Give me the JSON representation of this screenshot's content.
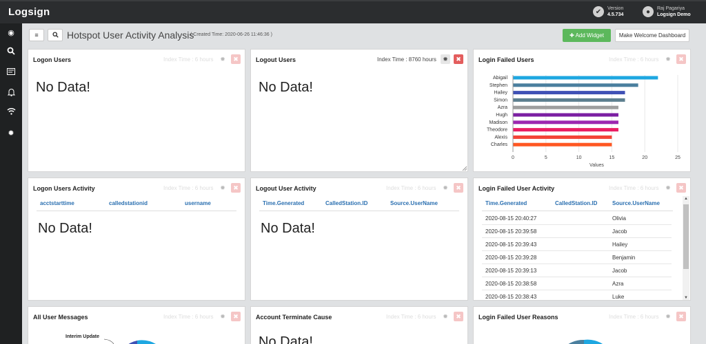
{
  "app": {
    "brand": "Logsign",
    "version_label": "Version",
    "version_value": "4.5.734",
    "user_name": "Raj Pagariya",
    "user_org": "Logsign Demo"
  },
  "sidebar": {
    "icons": [
      "dashboard-icon",
      "search-icon",
      "report-icon",
      "bell-icon",
      "wifi-icon",
      "gear-icon"
    ]
  },
  "header": {
    "title": "Hotspot User Activity Analysis",
    "subtitle": "( Created Time: 2020-06-26 11:46:36 )",
    "add_widget_label": "Add Widget",
    "welcome_label": "Make Welcome Dashboard"
  },
  "common": {
    "index_time": "Index Time : 6 hours",
    "no_data": "No Data!"
  },
  "panels": {
    "logon_users": {
      "title": "Logon Users"
    },
    "logout_users": {
      "title": "Logout Users",
      "index_time": "Index Time : 8760 hours"
    },
    "login_failed_users": {
      "title": "Login Failed Users"
    },
    "logon_users_activity": {
      "title": "Logon Users Activity",
      "columns": [
        "acctstarttime",
        "calledstationid",
        "username"
      ]
    },
    "logout_user_activity": {
      "title": "Logout User Activity",
      "columns": [
        "Time.Generated",
        "CalledStation.ID",
        "Source.UserName"
      ]
    },
    "login_failed_user_activity": {
      "title": "Login Failed User Activity",
      "columns": [
        "Time.Generated",
        "CalledStation.ID",
        "Source.UserName"
      ],
      "rows": [
        {
          "time": "2020-08-15 20:40:27",
          "station": "",
          "user": "Olivia"
        },
        {
          "time": "2020-08-15 20:39:58",
          "station": "",
          "user": "Jacob"
        },
        {
          "time": "2020-08-15 20:39:43",
          "station": "",
          "user": "Hailey"
        },
        {
          "time": "2020-08-15 20:39:28",
          "station": "",
          "user": "Benjamin"
        },
        {
          "time": "2020-08-15 20:39:13",
          "station": "",
          "user": "Jacob"
        },
        {
          "time": "2020-08-15 20:38:58",
          "station": "",
          "user": "Azra"
        },
        {
          "time": "2020-08-15 20:38:43",
          "station": "",
          "user": "Luke"
        }
      ]
    },
    "all_user_messages": {
      "title": "All User Messages",
      "label": "Interim Update"
    },
    "account_terminate_cause": {
      "title": "Account Terminate Cause"
    },
    "login_failed_user_reasons": {
      "title": "Login Failed User Reasons"
    }
  },
  "chart_data": {
    "type": "bar",
    "orientation": "horizontal",
    "categories": [
      "Abigail",
      "Stephen",
      "Hailey",
      "Simon",
      "Azra",
      "Hugh",
      "Madison",
      "Theodore",
      "Alexis",
      "Charles"
    ],
    "values": [
      22,
      19,
      17,
      17,
      16,
      16,
      16,
      16,
      15,
      15
    ],
    "colors": [
      "#1ea7e1",
      "#4a7f9e",
      "#3f51b5",
      "#5d7f8f",
      "#9e9e9e",
      "#7b1fa2",
      "#9c27b0",
      "#e91e63",
      "#f44336",
      "#ff5722"
    ],
    "xlabel": "Values",
    "xlim": [
      0,
      25
    ],
    "xticks": [
      0,
      5,
      10,
      15,
      20,
      25
    ],
    "grid": true
  }
}
